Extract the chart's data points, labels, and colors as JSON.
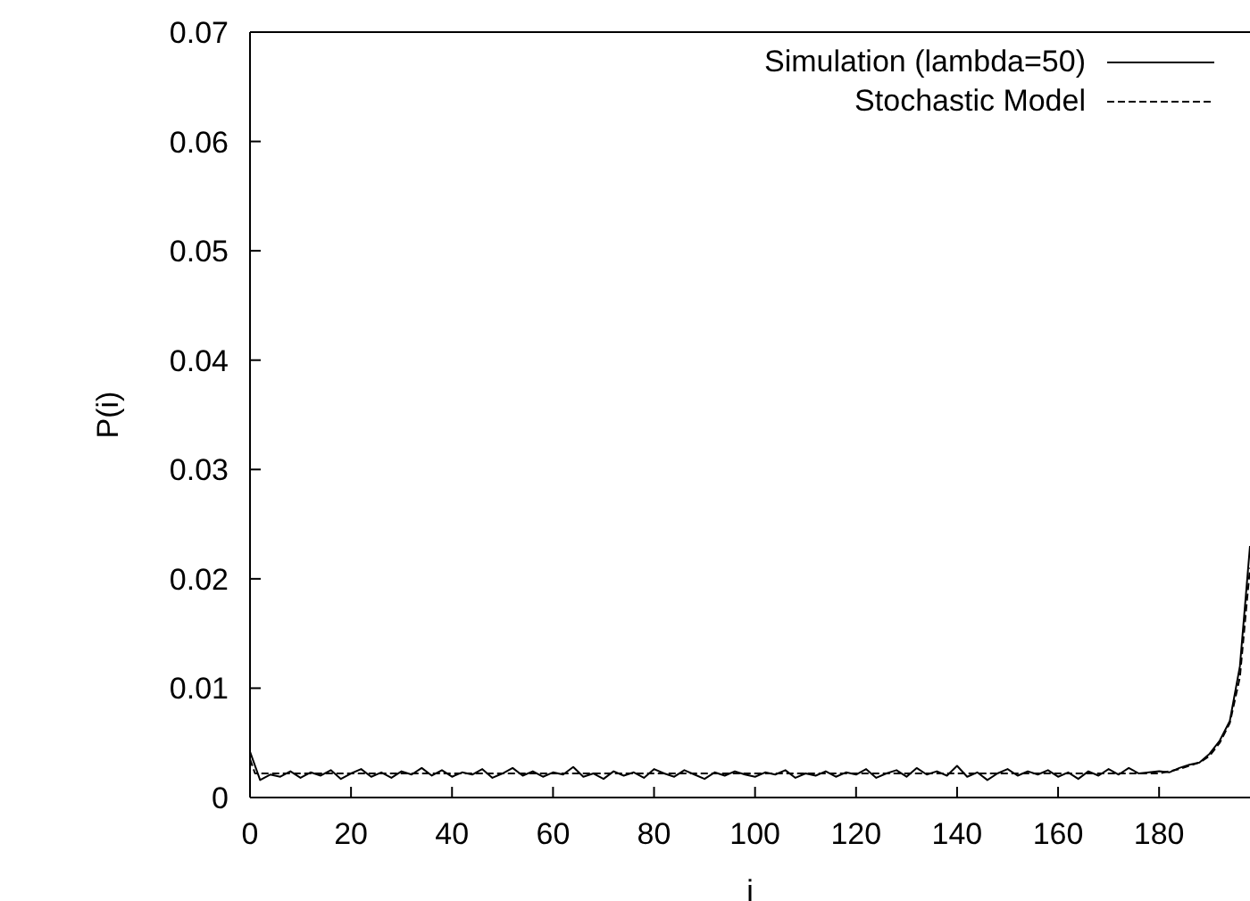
{
  "chart_data": {
    "type": "line",
    "xlabel": "i",
    "ylabel": "P(i)",
    "xlim": [
      0,
      198
    ],
    "xticks": [
      0,
      20,
      40,
      60,
      80,
      100,
      120,
      140,
      160,
      180
    ],
    "ylim": [
      0,
      0.07
    ],
    "yticks": [
      0,
      0.01,
      0.02,
      0.03,
      0.04,
      0.05,
      0.06,
      0.07
    ],
    "grid": false,
    "legend": "top right",
    "marker": "none",
    "series": [
      {
        "name": "Simulation (lambda=50)",
        "color": "#000000",
        "line_style": "solid",
        "x": [
          0,
          2,
          4,
          6,
          8,
          10,
          12,
          14,
          16,
          18,
          20,
          22,
          24,
          26,
          28,
          30,
          32,
          34,
          36,
          38,
          40,
          42,
          44,
          46,
          48,
          50,
          52,
          54,
          56,
          58,
          60,
          62,
          64,
          66,
          68,
          70,
          72,
          74,
          76,
          78,
          80,
          82,
          84,
          86,
          88,
          90,
          92,
          94,
          96,
          98,
          100,
          102,
          104,
          106,
          108,
          110,
          112,
          114,
          116,
          118,
          120,
          122,
          124,
          126,
          128,
          130,
          132,
          134,
          136,
          138,
          140,
          142,
          144,
          146,
          148,
          150,
          152,
          154,
          156,
          158,
          160,
          162,
          164,
          166,
          168,
          170,
          172,
          174,
          176,
          178,
          180,
          182,
          184,
          186,
          188,
          190,
          192,
          194,
          196,
          198
        ],
        "values": [
          0.0042,
          0.0016,
          0.0021,
          0.0019,
          0.0024,
          0.0018,
          0.0023,
          0.002,
          0.0025,
          0.0017,
          0.0022,
          0.0026,
          0.0019,
          0.0023,
          0.0018,
          0.0024,
          0.0021,
          0.0027,
          0.002,
          0.0025,
          0.0019,
          0.0023,
          0.0021,
          0.0026,
          0.0018,
          0.0022,
          0.0027,
          0.002,
          0.0024,
          0.0019,
          0.0023,
          0.0021,
          0.0028,
          0.0019,
          0.0022,
          0.0017,
          0.0024,
          0.002,
          0.0023,
          0.0018,
          0.0026,
          0.0022,
          0.0019,
          0.0025,
          0.0021,
          0.0017,
          0.0023,
          0.002,
          0.0024,
          0.0021,
          0.0019,
          0.0023,
          0.0021,
          0.0025,
          0.0018,
          0.0022,
          0.002,
          0.0024,
          0.0019,
          0.0023,
          0.0021,
          0.0026,
          0.0018,
          0.0022,
          0.0025,
          0.0019,
          0.0027,
          0.0021,
          0.0024,
          0.002,
          0.0029,
          0.0019,
          0.0023,
          0.0016,
          0.0022,
          0.0026,
          0.002,
          0.0024,
          0.0021,
          0.0025,
          0.0019,
          0.0023,
          0.0017,
          0.0024,
          0.002,
          0.0026,
          0.0021,
          0.0027,
          0.0022,
          0.0023,
          0.0024,
          0.0023,
          0.0027,
          0.003,
          0.0032,
          0.004,
          0.0052,
          0.007,
          0.012,
          0.023
        ]
      },
      {
        "name": "Stochastic Model",
        "color": "#000000",
        "line_style": "dashed",
        "x": [
          0,
          1,
          2,
          20,
          40,
          60,
          80,
          100,
          120,
          140,
          160,
          180,
          184,
          188,
          190,
          192,
          194,
          196,
          198
        ],
        "values": [
          0.0035,
          0.0022,
          0.0022,
          0.0022,
          0.0022,
          0.0022,
          0.0022,
          0.0022,
          0.0022,
          0.0022,
          0.0022,
          0.0022,
          0.0026,
          0.0032,
          0.0038,
          0.005,
          0.0068,
          0.011,
          0.021
        ]
      }
    ]
  }
}
